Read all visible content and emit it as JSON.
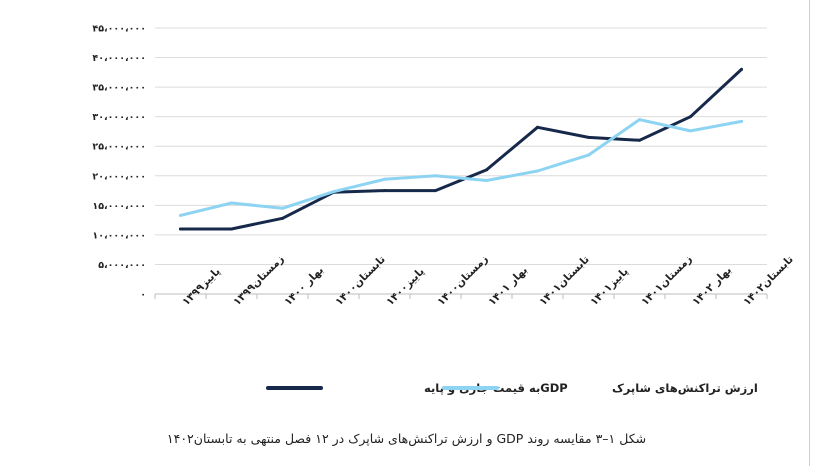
{
  "chart_data": {
    "type": "line",
    "categories": [
      "پاییز۱۳۹۹",
      "زمستان۱۳۹۹",
      "بهار ۱۴۰۰",
      "تابستان۱۴۰۰",
      "پاییز۱۴۰۰",
      "زمستان۱۴۰۰",
      "بهار ۱۴۰۱",
      "تابستان۱۴۰۱",
      "پاییز۱۴۰۱",
      "زمستان۱۴۰۱",
      "بهار ۱۴۰۲",
      "تابستان۱۴۰۲"
    ],
    "series": [
      {
        "name": "GDPبه قیمت جاری و پایه",
        "color": "#16294a",
        "values": [
          11000000,
          11000000,
          12800000,
          17200000,
          17500000,
          17500000,
          21000000,
          28200000,
          26500000,
          26000000,
          30000000,
          38000000
        ]
      },
      {
        "name": "ارزش تراکنش‌های شاپرک",
        "color": "#8dd3f2",
        "values": [
          13300000,
          15400000,
          14500000,
          17300000,
          19400000,
          20000000,
          19200000,
          20800000,
          23500000,
          29500000,
          27600000,
          29200000
        ]
      }
    ],
    "yticks": [
      "۰",
      "۵،۰۰۰،۰۰۰",
      "۱۰،۰۰۰،۰۰۰",
      "۱۵،۰۰۰،۰۰۰",
      "۲۰،۰۰۰،۰۰۰",
      "۲۵،۰۰۰،۰۰۰",
      "۳۰،۰۰۰،۰۰۰",
      "۳۵،۰۰۰،۰۰۰",
      "۴۰،۰۰۰،۰۰۰",
      "۴۵،۰۰۰،۰۰۰"
    ],
    "ylim": [
      0,
      45000000
    ],
    "ystep": 5000000,
    "grid": true,
    "legend_position": "bottom-center",
    "title": "شکل ۱–۳ مقایسه روند GDP و ارزش تراکنش‌های شاپرک در ۱۲ فصل منتهی به تابستان۱۴۰۲"
  }
}
